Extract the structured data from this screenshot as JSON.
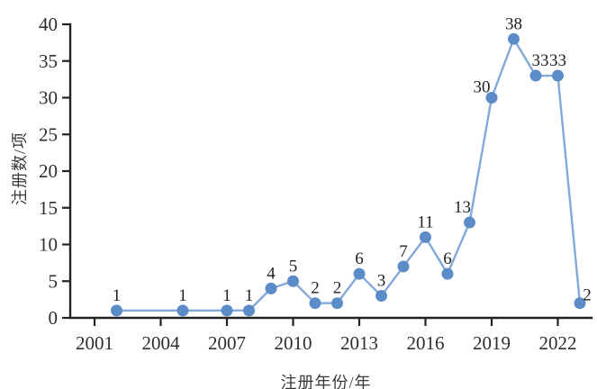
{
  "chart_data": {
    "type": "line",
    "title": "",
    "xlabel": "注册年份/年",
    "ylabel": "注册数/项",
    "x": [
      2002,
      2005,
      2007,
      2008,
      2009,
      2010,
      2011,
      2012,
      2013,
      2014,
      2015,
      2016,
      2017,
      2018,
      2019,
      2020,
      2021,
      2022,
      2023
    ],
    "values": [
      1,
      1,
      1,
      1,
      4,
      5,
      2,
      2,
      6,
      3,
      7,
      11,
      6,
      13,
      30,
      38,
      33,
      33,
      2
    ],
    "point_labels": [
      "1",
      "1",
      "1",
      "1",
      "4",
      "5",
      "2",
      "2",
      "6",
      "3",
      "7",
      "11",
      "6",
      "13",
      "30",
      "38",
      "33",
      "33",
      "2"
    ],
    "x_ticks": [
      2001,
      2004,
      2007,
      2010,
      2013,
      2016,
      2019,
      2022
    ],
    "y_ticks": [
      0,
      5,
      10,
      15,
      20,
      25,
      30,
      35,
      40
    ],
    "xlim": [
      2001,
      2023
    ],
    "ylim": [
      0,
      40
    ],
    "grid": false,
    "legend": null,
    "line_color": "#82a9d8",
    "marker_color": "#5b8cc8",
    "axis_color": "#232323",
    "tick_label_color": "#2e2e2e",
    "point_label_color": "#222222",
    "label_offsets": {
      "2018": [
        -8,
        0
      ],
      "2019": [
        -11,
        5
      ],
      "2021": [
        5,
        0
      ],
      "2023": [
        8,
        8
      ]
    }
  }
}
